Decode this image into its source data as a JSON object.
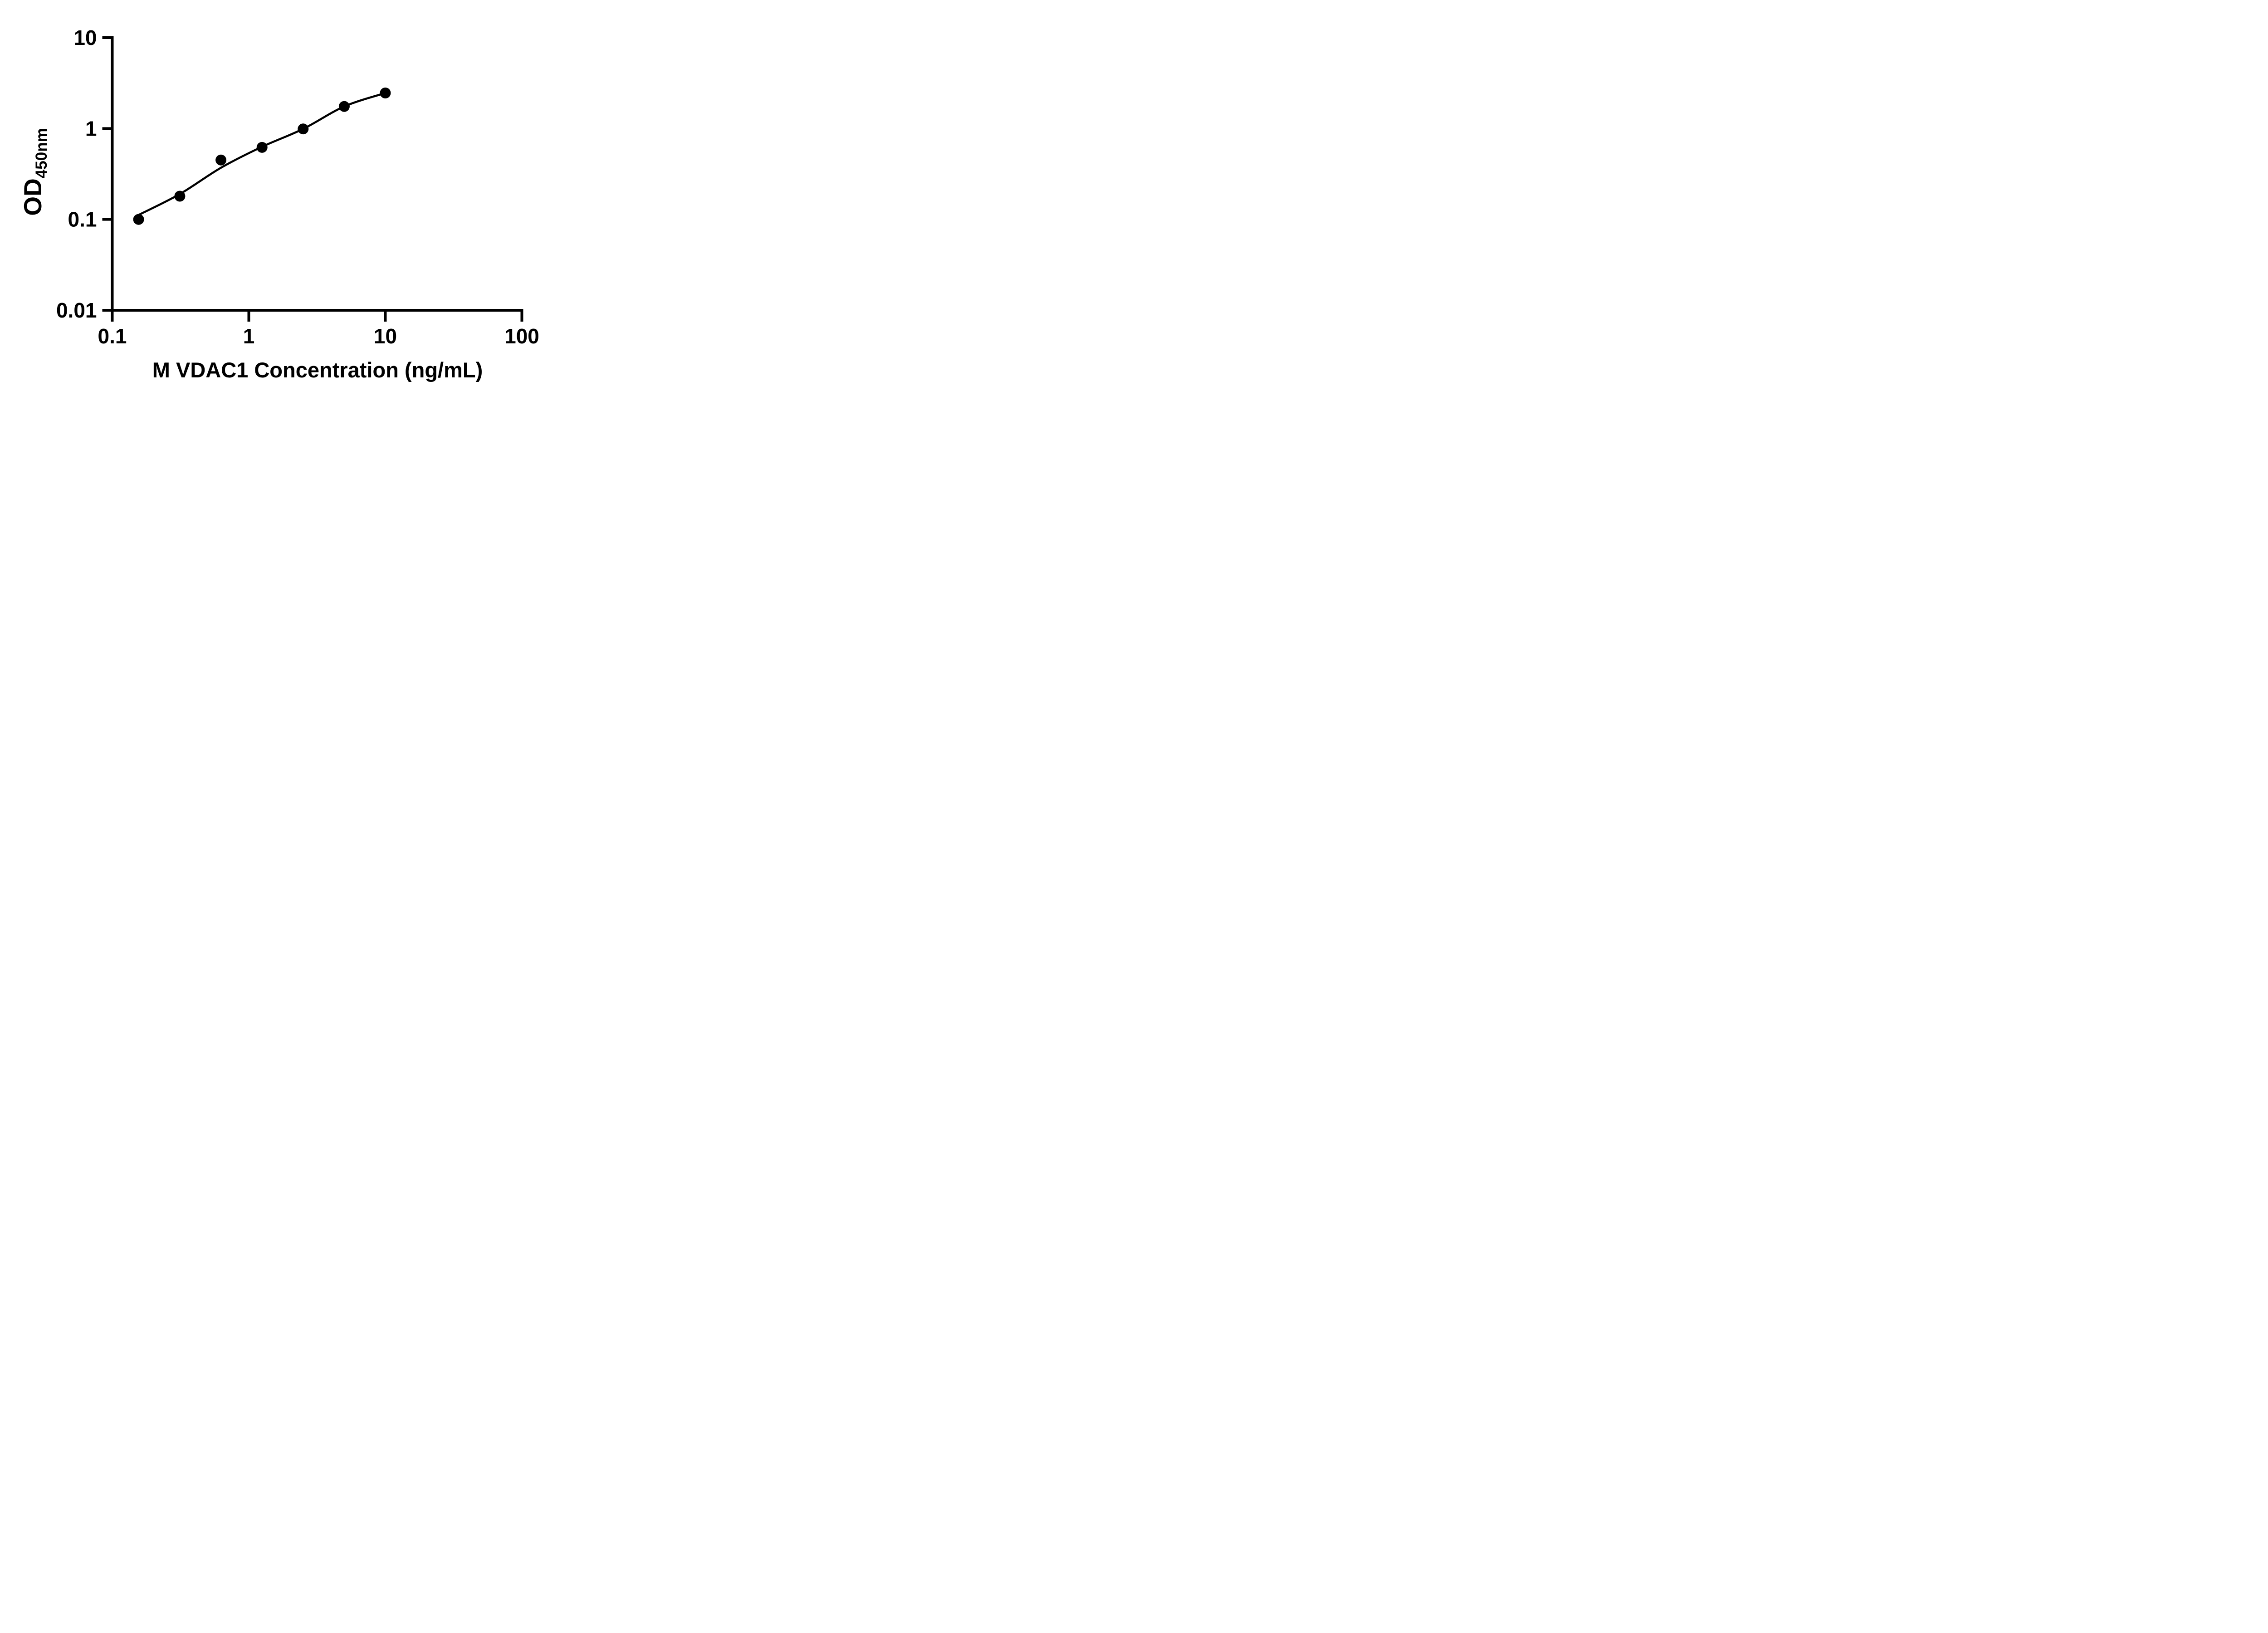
{
  "figure": {
    "background": "#ffffff",
    "x_axis_title": "M VDAC1 Concentration (ng/mL)",
    "y_axis_title_main": "OD",
    "y_axis_title_subscript": "450nm"
  },
  "chart_data": {
    "type": "scatter",
    "title": "",
    "xlabel": "M VDAC1 Concentration (ng/mL)",
    "ylabel": "OD450nm",
    "x_scale": "log10",
    "y_scale": "log10",
    "xlim": [
      0.1,
      100
    ],
    "ylim": [
      0.01,
      10
    ],
    "x_tick_values": [
      0.1,
      1,
      10,
      100
    ],
    "x_tick_labels": [
      "0.1",
      "1",
      "10",
      "100"
    ],
    "y_tick_values": [
      10,
      1,
      0.1,
      0.01
    ],
    "y_tick_labels": [
      "10",
      "1",
      "0.1",
      "0.01"
    ],
    "grid": false,
    "legend": false,
    "colors": {
      "points": "#000000",
      "line": "#000000",
      "axis": "#000000",
      "text": "#000000"
    },
    "series": [
      {
        "name": "standard-curve-points",
        "marker": "filled-circle",
        "x_ng_per_mL": [
          0.156,
          0.3125,
          0.625,
          1.25,
          2.5,
          5,
          10
        ],
        "y_od450": [
          0.1,
          0.18,
          0.45,
          0.62,
          0.99,
          1.75,
          2.46
        ]
      }
    ],
    "fit_curve": {
      "name": "fitted-standard-curve",
      "x": [
        0.156,
        0.3125,
        0.625,
        1.25,
        2.5,
        5,
        10
      ],
      "y": [
        0.112,
        0.19,
        0.37,
        0.63,
        0.99,
        1.75,
        2.46
      ]
    }
  }
}
